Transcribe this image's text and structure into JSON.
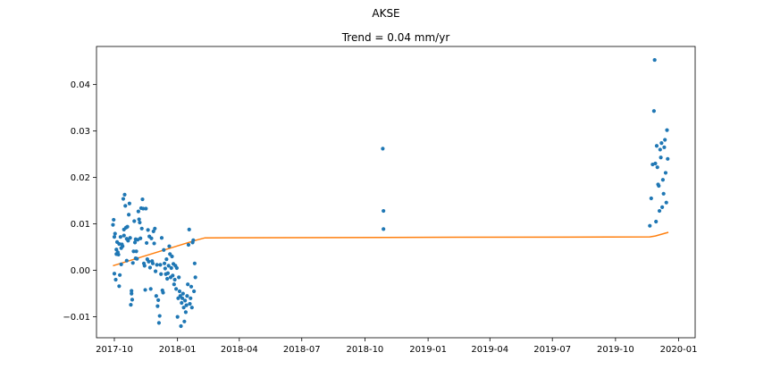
{
  "suptitle": "AKSE",
  "chart_data": {
    "type": "scatter",
    "title": "Trend = 0.04 mm/yr",
    "xlabel": "",
    "ylabel": "",
    "x_axis_type": "date",
    "xlim": [
      "2017-09-05",
      "2020-01-25"
    ],
    "ylim": [
      -0.0145,
      0.0482
    ],
    "xticks": [
      "2017-10-01",
      "2018-01-01",
      "2018-04-01",
      "2018-07-01",
      "2018-10-01",
      "2019-01-01",
      "2019-04-01",
      "2019-07-01",
      "2019-10-01",
      "2020-01-01"
    ],
    "xtick_labels": [
      "2017-10",
      "2018-01",
      "2018-04",
      "2018-07",
      "2018-10",
      "2019-01",
      "2019-04",
      "2019-07",
      "2019-10",
      "2020-01"
    ],
    "yticks": [
      -0.01,
      0.0,
      0.01,
      0.02,
      0.03,
      0.04
    ],
    "ytick_labels": [
      "−0.01",
      "0.00",
      "0.01",
      "0.02",
      "0.03",
      "0.04"
    ],
    "grid": false,
    "colors": {
      "points": "#1f77b4",
      "trend": "#ff7f0e"
    },
    "series": [
      {
        "kind": "points",
        "points": [
          [
            "2017-09-29",
            0.0098
          ],
          [
            "2017-09-30",
            0.0109
          ],
          [
            "2017-10-01",
            0.0072
          ],
          [
            "2017-10-01",
            -0.0007
          ],
          [
            "2017-10-02",
            0.0079
          ],
          [
            "2017-10-03",
            -0.002
          ],
          [
            "2017-10-04",
            0.0045
          ],
          [
            "2017-10-04",
            0.0035
          ],
          [
            "2017-10-05",
            0.0061
          ],
          [
            "2017-10-06",
            0.0039
          ],
          [
            "2017-10-07",
            0.0034
          ],
          [
            "2017-10-08",
            -0.0034
          ],
          [
            "2017-10-08",
            0.0057
          ],
          [
            "2017-10-09",
            -0.001
          ],
          [
            "2017-10-10",
            0.0072
          ],
          [
            "2017-10-11",
            0.0013
          ],
          [
            "2017-10-11",
            0.0048
          ],
          [
            "2017-10-12",
            0.0056
          ],
          [
            "2017-10-13",
            0.0052
          ],
          [
            "2017-10-14",
            0.0154
          ],
          [
            "2017-10-15",
            0.0075
          ],
          [
            "2017-10-15",
            0.0088
          ],
          [
            "2017-10-16",
            0.0163
          ],
          [
            "2017-10-17",
            0.0139
          ],
          [
            "2017-10-18",
            0.0092
          ],
          [
            "2017-10-19",
            0.0068
          ],
          [
            "2017-10-19",
            0.0021
          ],
          [
            "2017-10-20",
            0.0094
          ],
          [
            "2017-10-21",
            0.0064
          ],
          [
            "2017-10-22",
            0.012
          ],
          [
            "2017-10-23",
            0.0144
          ],
          [
            "2017-10-24",
            0.007
          ],
          [
            "2017-10-25",
            -0.0074
          ],
          [
            "2017-10-26",
            -0.0044
          ],
          [
            "2017-10-26",
            -0.005
          ],
          [
            "2017-10-27",
            -0.0063
          ],
          [
            "2017-10-28",
            0.0016
          ],
          [
            "2017-10-29",
            0.0041
          ],
          [
            "2017-10-30",
            0.0106
          ],
          [
            "2017-10-31",
            0.006
          ],
          [
            "2017-11-01",
            0.0026
          ],
          [
            "2017-11-01",
            0.0067
          ],
          [
            "2017-11-02",
            0.0041
          ],
          [
            "2017-11-03",
            0.0025
          ],
          [
            "2017-11-04",
            0.0066
          ],
          [
            "2017-11-05",
            0.0127
          ],
          [
            "2017-11-06",
            0.011
          ],
          [
            "2017-11-07",
            0.0103
          ],
          [
            "2017-11-08",
            0.0069
          ],
          [
            "2017-11-09",
            0.0134
          ],
          [
            "2017-11-10",
            0.009
          ],
          [
            "2017-11-11",
            0.0153
          ],
          [
            "2017-11-12",
            0.0133
          ],
          [
            "2017-11-13",
            0.0015
          ],
          [
            "2017-11-14",
            0.001
          ],
          [
            "2017-11-15",
            -0.0042
          ],
          [
            "2017-11-16",
            0.0133
          ],
          [
            "2017-11-17",
            0.0059
          ],
          [
            "2017-11-18",
            0.0024
          ],
          [
            "2017-11-19",
            0.0087
          ],
          [
            "2017-11-20",
            0.0019
          ],
          [
            "2017-11-21",
            0.0073
          ],
          [
            "2017-11-22",
            0.0006
          ],
          [
            "2017-11-23",
            -0.004
          ],
          [
            "2017-11-24",
            0.0069
          ],
          [
            "2017-11-25",
            0.002
          ],
          [
            "2017-11-26",
            0.0015
          ],
          [
            "2017-11-27",
            0.0084
          ],
          [
            "2017-11-28",
            0.0058
          ],
          [
            "2017-11-29",
            0.009
          ],
          [
            "2017-11-30",
            -0.0002
          ],
          [
            "2017-12-01",
            -0.0055
          ],
          [
            "2017-12-02",
            0.0012
          ],
          [
            "2017-12-03",
            -0.0077
          ],
          [
            "2017-12-04",
            -0.0064
          ],
          [
            "2017-12-05",
            -0.0113
          ],
          [
            "2017-12-06",
            -0.0098
          ],
          [
            "2017-12-07",
            0.0012
          ],
          [
            "2017-12-08",
            -0.0008
          ],
          [
            "2017-12-09",
            0.007
          ],
          [
            "2017-12-10",
            -0.0043
          ],
          [
            "2017-12-11",
            -0.0048
          ],
          [
            "2017-12-12",
            0.0044
          ],
          [
            "2017-12-13",
            0.0015
          ],
          [
            "2017-12-14",
            0.0004
          ],
          [
            "2017-12-15",
            -0.0008
          ],
          [
            "2017-12-16",
            0.0024
          ],
          [
            "2017-12-17",
            -0.0018
          ],
          [
            "2017-12-18",
            -0.0006
          ],
          [
            "2017-12-19",
            0.001
          ],
          [
            "2017-12-20",
            0.0052
          ],
          [
            "2017-12-21",
            0.0035
          ],
          [
            "2017-12-22",
            -0.0015
          ],
          [
            "2017-12-23",
            0.0005
          ],
          [
            "2017-12-24",
            0.003
          ],
          [
            "2017-12-25",
            -0.0011
          ],
          [
            "2017-12-26",
            0.0014
          ],
          [
            "2017-12-27",
            -0.003
          ],
          [
            "2017-12-28",
            -0.002
          ],
          [
            "2017-12-29",
            0.001
          ],
          [
            "2017-12-30",
            -0.004
          ],
          [
            "2017-12-31",
            0.0005
          ],
          [
            "2018-01-01",
            -0.01
          ],
          [
            "2018-01-02",
            -0.006
          ],
          [
            "2018-01-03",
            -0.0015
          ],
          [
            "2018-01-04",
            -0.0045
          ],
          [
            "2018-01-05",
            -0.0055
          ],
          [
            "2018-01-06",
            -0.012
          ],
          [
            "2018-01-07",
            -0.007
          ],
          [
            "2018-01-08",
            -0.006
          ],
          [
            "2018-01-09",
            -0.005
          ],
          [
            "2018-01-10",
            -0.008
          ],
          [
            "2018-01-11",
            -0.011
          ],
          [
            "2018-01-12",
            -0.0065
          ],
          [
            "2018-01-13",
            -0.009
          ],
          [
            "2018-01-14",
            -0.0075
          ],
          [
            "2018-01-15",
            -0.0055
          ],
          [
            "2018-01-16",
            -0.003
          ],
          [
            "2018-01-17",
            0.0055
          ],
          [
            "2018-01-18",
            0.0088
          ],
          [
            "2018-01-19",
            -0.0072
          ],
          [
            "2018-01-20",
            -0.006
          ],
          [
            "2018-01-21",
            -0.0035
          ],
          [
            "2018-01-22",
            -0.008
          ],
          [
            "2018-01-23",
            0.006
          ],
          [
            "2018-01-24",
            0.0065
          ],
          [
            "2018-01-25",
            -0.0045
          ],
          [
            "2018-01-26",
            0.0015
          ],
          [
            "2018-01-27",
            -0.0015
          ],
          [
            "2018-10-27",
            0.0262
          ],
          [
            "2018-10-28",
            0.0128
          ],
          [
            "2018-10-28",
            0.0089
          ],
          [
            "2019-11-20",
            0.0096
          ],
          [
            "2019-11-22",
            0.0155
          ],
          [
            "2019-11-24",
            0.0228
          ],
          [
            "2019-11-26",
            0.0343
          ],
          [
            "2019-11-27",
            0.0453
          ],
          [
            "2019-11-28",
            0.023
          ],
          [
            "2019-11-29",
            0.0105
          ],
          [
            "2019-11-30",
            0.0268
          ],
          [
            "2019-12-01",
            0.0222
          ],
          [
            "2019-12-02",
            0.0185
          ],
          [
            "2019-12-03",
            0.0182
          ],
          [
            "2019-12-04",
            0.0128
          ],
          [
            "2019-12-05",
            0.026
          ],
          [
            "2019-12-06",
            0.0243
          ],
          [
            "2019-12-07",
            0.0274
          ],
          [
            "2019-12-08",
            0.0136
          ],
          [
            "2019-12-09",
            0.0195
          ],
          [
            "2019-12-10",
            0.0165
          ],
          [
            "2019-12-11",
            0.0265
          ],
          [
            "2019-12-12",
            0.0281
          ],
          [
            "2019-12-13",
            0.021
          ],
          [
            "2019-12-14",
            0.0146
          ],
          [
            "2019-12-15",
            0.0302
          ],
          [
            "2019-12-16",
            0.024
          ]
        ]
      },
      {
        "kind": "trend",
        "points": [
          [
            "2017-09-29",
            0.001
          ],
          [
            "2018-01-28",
            0.0065
          ],
          [
            "2018-02-10",
            0.007
          ],
          [
            "2018-11-01",
            0.0071
          ],
          [
            "2019-11-20",
            0.0072
          ],
          [
            "2019-11-28",
            0.0074
          ],
          [
            "2019-12-17",
            0.0082
          ]
        ]
      }
    ]
  }
}
